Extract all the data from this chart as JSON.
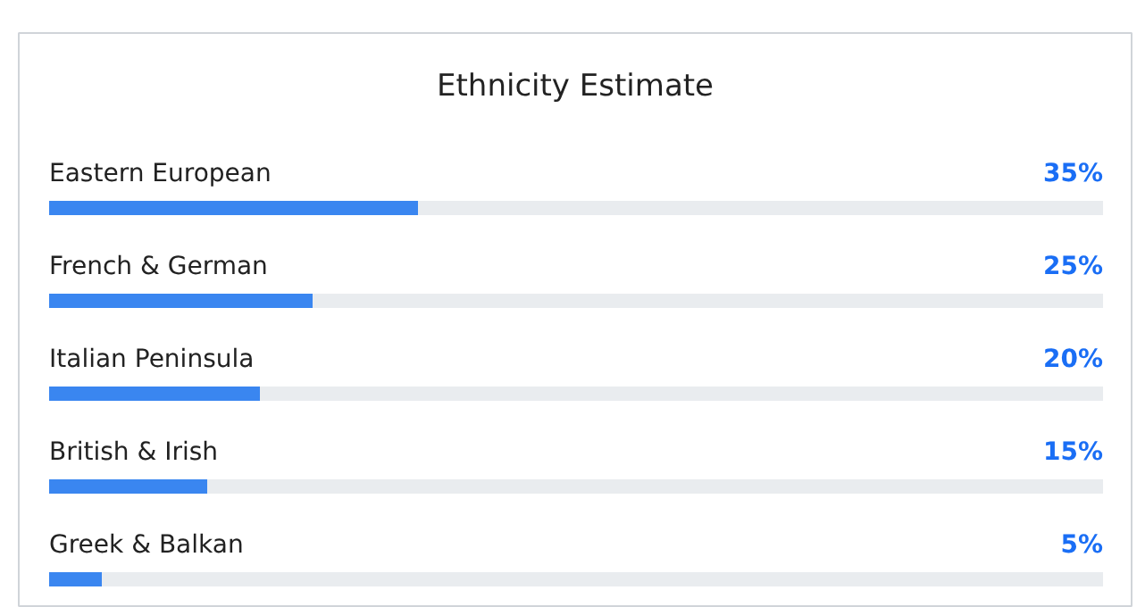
{
  "chart_data": {
    "type": "bar",
    "orientation": "horizontal",
    "title": "Ethnicity Estimate",
    "categories": [
      "Eastern European",
      "French & German",
      "Italian Peninsula",
      "British & Irish",
      "Greek & Balkan"
    ],
    "values": [
      35,
      25,
      20,
      15,
      5
    ],
    "value_labels": [
      "35%",
      "25%",
      "20%",
      "15%",
      "5%"
    ],
    "color": "#3a86f0",
    "xlim": [
      0,
      100
    ],
    "tick_labels": false
  }
}
